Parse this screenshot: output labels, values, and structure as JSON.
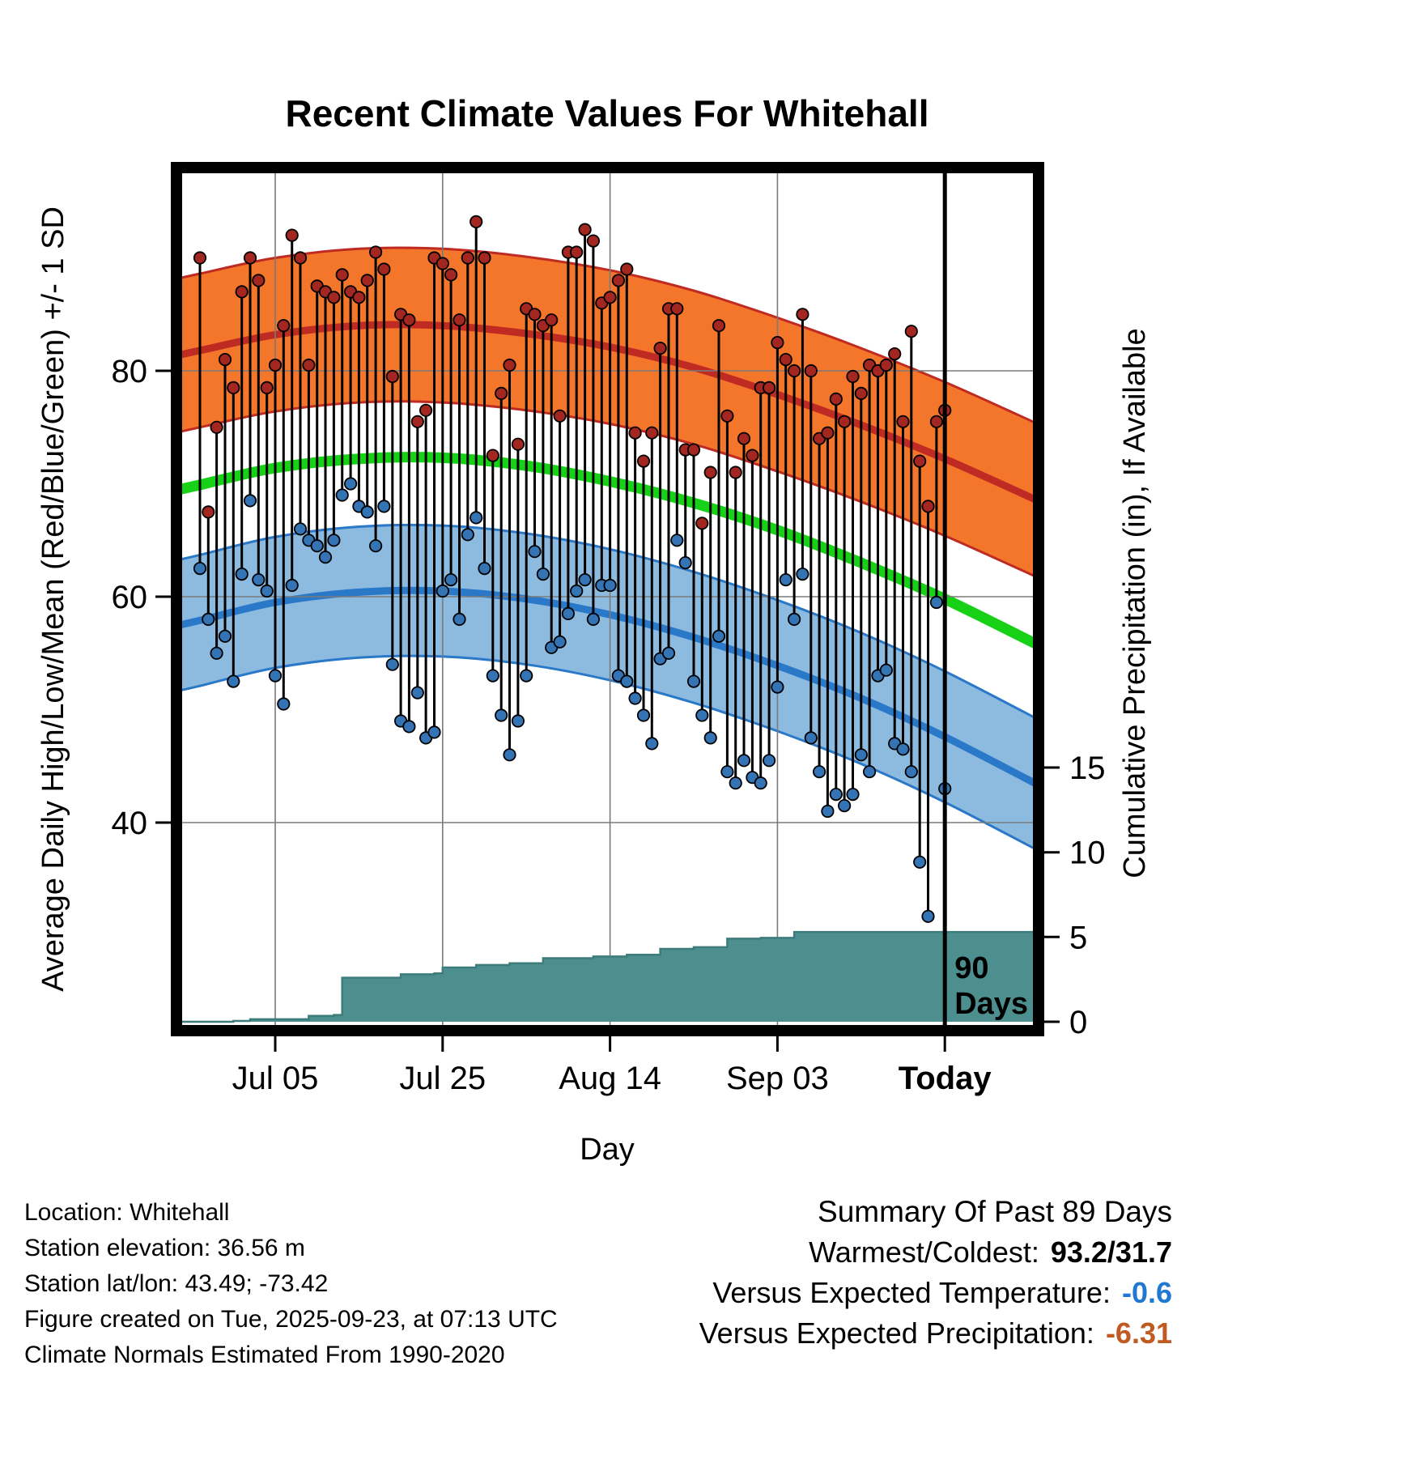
{
  "title": "Recent Climate Values For Whitehall",
  "axes": {
    "left_label": "Average Daily High/Low/Mean (Red/Blue/Green) +/- 1 SD",
    "right_label": "Cumulative Precipitation (in), If Available",
    "x_label": "Day"
  },
  "annotation": {
    "line1": "90",
    "line2": "Days"
  },
  "footer": {
    "location": "Location: Whitehall",
    "elevation": "Station elevation: 36.56 m",
    "latlon": "Station lat/lon: 43.49; -73.42",
    "created": "Figure created on Tue, 2025-09-23, at 07:13 UTC",
    "normals": "Climate Normals Estimated From 1990-2020"
  },
  "summary": {
    "title": "Summary Of Past 89 Days",
    "warmest_coldest_label": "Warmest/Coldest:",
    "warmest_coldest_value": "93.2/31.7",
    "vs_temp_label": "Versus Expected Temperature:",
    "vs_temp_value": "-0.6",
    "vs_precip_label": "Versus Expected Precipitation:",
    "vs_precip_value": "-6.31"
  },
  "colors": {
    "high_band": "#f4762b",
    "high_line": "#bf2b22",
    "mean_line": "#17d117",
    "low_band": "#8dbbe0",
    "low_line": "#2a78c8",
    "high_dot": "#a32620",
    "low_dot": "#3474b4",
    "precip_fill": "#4d8e8e",
    "precip_edge": "#3e7c7c",
    "stem": "#000000",
    "grid": "#7a7a7a",
    "axis": "#000000",
    "vs_temp": "#1f78d1",
    "vs_precip": "#c05a20"
  },
  "chart_data": {
    "type": "line",
    "title": "Recent Climate Values For Whitehall",
    "x_axis": {
      "label": "Day",
      "domain_days": [
        -2.8,
        100.2
      ],
      "start_date": "Jun 26",
      "ticks": [
        {
          "day": 9,
          "label": "Jul 05"
        },
        {
          "day": 29,
          "label": "Jul 25"
        },
        {
          "day": 49,
          "label": "Aug 14"
        },
        {
          "day": 69,
          "label": "Sep 03"
        },
        {
          "day": 89,
          "label": "Today",
          "bold": true
        }
      ]
    },
    "temp_axis": {
      "ticks": [
        80,
        60,
        40
      ],
      "domain": [
        21.5,
        97.8
      ]
    },
    "precip_axis": {
      "ticks": [
        15,
        10,
        5,
        0
      ],
      "domain_in": [
        0,
        50.4
      ]
    },
    "daily": {
      "high": [
        90.0,
        67.5,
        75.0,
        81.0,
        78.5,
        87.0,
        90.0,
        88.0,
        78.5,
        80.5,
        84.0,
        92.0,
        90.0,
        80.5,
        87.5,
        87.0,
        86.5,
        88.5,
        87.0,
        86.5,
        88.0,
        90.5,
        89.0,
        79.5,
        85.0,
        84.5,
        75.5,
        76.5,
        90.0,
        89.5,
        88.5,
        84.5,
        90.0,
        93.2,
        90.0,
        72.5,
        78.0,
        80.5,
        73.5,
        85.5,
        85.0,
        84.0,
        84.5,
        76.0,
        90.5,
        90.5,
        92.5,
        91.5,
        86.0,
        86.5,
        88.0,
        89.0,
        74.5,
        72.0,
        74.5,
        82.0,
        85.5,
        85.5,
        73.0,
        73.0,
        66.5,
        71.0,
        84.0,
        76.0,
        71.0,
        74.0,
        72.5,
        78.5,
        78.5,
        82.5,
        81.0,
        80.0,
        85.0,
        80.0,
        74.0,
        74.5,
        77.5,
        75.5,
        79.5,
        78.0,
        80.5,
        80.0,
        80.5,
        81.5,
        75.5,
        83.5,
        72.0,
        68.0,
        75.5,
        76.5
      ],
      "low": [
        62.5,
        58.0,
        55.0,
        56.5,
        52.5,
        62.0,
        68.5,
        61.5,
        60.5,
        53.0,
        50.5,
        61.0,
        66.0,
        65.0,
        64.5,
        63.5,
        65.0,
        69.0,
        70.0,
        68.0,
        67.5,
        64.5,
        68.0,
        54.0,
        49.0,
        48.5,
        51.5,
        47.5,
        48.0,
        60.5,
        61.5,
        58.0,
        65.5,
        67.0,
        62.5,
        53.0,
        49.5,
        46.0,
        49.0,
        53.0,
        64.0,
        62.0,
        55.5,
        56.0,
        58.5,
        60.5,
        61.5,
        58.0,
        61.0,
        61.0,
        53.0,
        52.5,
        51.0,
        49.5,
        47.0,
        54.5,
        55.0,
        65.0,
        63.0,
        52.5,
        49.5,
        47.5,
        56.5,
        44.5,
        43.5,
        45.5,
        44.0,
        43.5,
        45.5,
        52.0,
        61.5,
        58.0,
        62.0,
        47.5,
        44.5,
        41.0,
        42.5,
        41.5,
        42.5,
        46.0,
        44.5,
        53.0,
        53.5,
        47.0,
        46.5,
        44.5,
        36.5,
        31.7,
        59.5,
        43.0
      ]
    },
    "normals": {
      "days": [
        -3,
        0,
        9,
        19,
        29,
        39,
        49,
        59,
        69,
        79,
        89,
        101
      ],
      "high_mean": [
        81.3,
        81.8,
        83.2,
        84.0,
        84.0,
        83.3,
        82.1,
        80.3,
        77.9,
        75.2,
        72.2,
        68.2
      ],
      "mean": [
        69.4,
        69.9,
        71.4,
        72.2,
        72.3,
        71.6,
        70.2,
        68.3,
        65.9,
        63.0,
        59.8,
        55.4
      ],
      "low_mean": [
        57.4,
        57.9,
        59.5,
        60.4,
        60.5,
        59.8,
        58.4,
        56.4,
        53.9,
        51.0,
        47.6,
        43.0
      ],
      "high_sd": 6.8,
      "low_sd": 5.8
    },
    "precip_cumulative": {
      "days": [
        -3,
        4,
        6,
        13,
        16,
        17,
        24,
        28,
        29,
        33,
        37,
        41,
        47,
        51,
        55,
        59,
        63,
        67,
        71,
        101
      ],
      "values": [
        0,
        0.05,
        0.15,
        0.35,
        0.4,
        2.6,
        2.8,
        2.85,
        3.2,
        3.35,
        3.45,
        3.75,
        3.85,
        3.95,
        4.3,
        4.4,
        4.9,
        4.95,
        5.3,
        5.3
      ]
    },
    "today_day": 89,
    "summary": {
      "period_days": 89,
      "warmest": 93.2,
      "coldest": 31.7,
      "vs_expected_temperature": -0.6,
      "vs_expected_precipitation": -6.31
    }
  }
}
